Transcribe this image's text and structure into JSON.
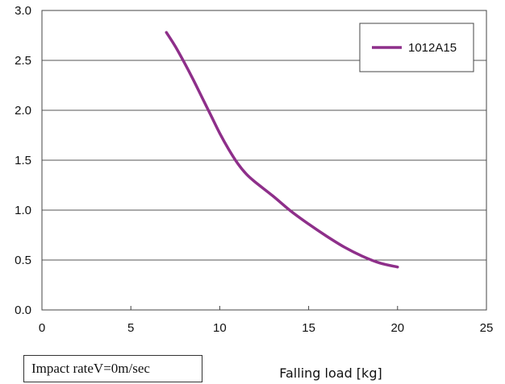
{
  "chart_data": {
    "type": "line",
    "title": "",
    "xlabel": "Falling load [kg]",
    "ylabel": "",
    "xlim": [
      0,
      25
    ],
    "ylim": [
      0.0,
      3.0
    ],
    "x_ticks": [
      "0",
      "5",
      "10",
      "15",
      "20",
      "25"
    ],
    "y_ticks": [
      "0.0",
      "0.5",
      "1.0",
      "1.5",
      "2.0",
      "2.5",
      "3.0"
    ],
    "grid": "horizontal",
    "legend_position": "top-right",
    "series": [
      {
        "name": "1012A15",
        "color": "#8e2f8a",
        "x": [
          7.0,
          7.5,
          8.0,
          8.5,
          9.0,
          9.5,
          10.0,
          10.5,
          11.0,
          11.5,
          12.0,
          13.0,
          14.0,
          15.0,
          16.0,
          17.0,
          18.0,
          19.0,
          20.0
        ],
        "y": [
          2.78,
          2.64,
          2.48,
          2.31,
          2.13,
          1.95,
          1.77,
          1.61,
          1.47,
          1.36,
          1.28,
          1.14,
          0.99,
          0.86,
          0.74,
          0.63,
          0.54,
          0.47,
          0.43
        ]
      }
    ]
  },
  "annotation": "Impact rateV=0m/sec"
}
